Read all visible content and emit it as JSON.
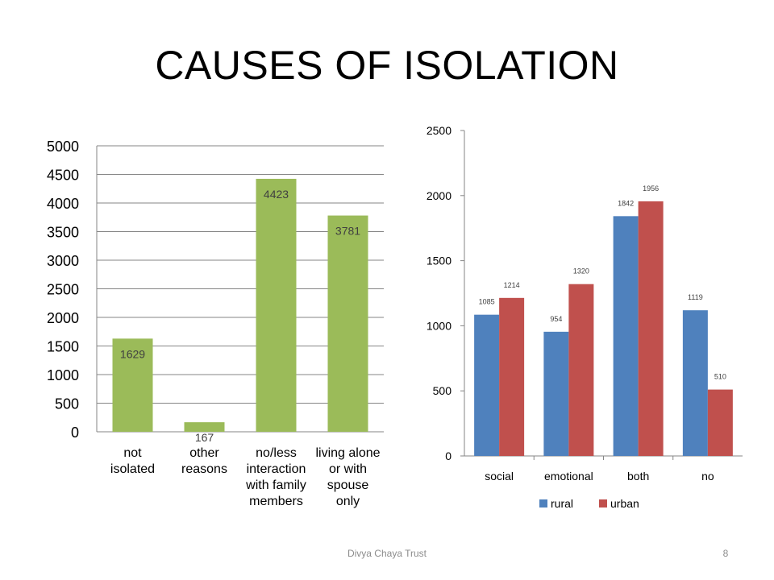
{
  "slide": {
    "title": "CAUSES OF ISOLATION",
    "footer": "Divya Chaya Trust",
    "page_number": "8"
  },
  "chart_data": [
    {
      "type": "bar",
      "categories": [
        [
          "not",
          "isolated"
        ],
        [
          "other",
          "reasons"
        ],
        [
          "no/less",
          "interaction",
          "with family",
          "members"
        ],
        [
          "living alone",
          "or with",
          "spouse",
          "only"
        ]
      ],
      "series": [
        {
          "color": "#9bbb59",
          "values": [
            1629,
            167,
            4423,
            3781
          ]
        }
      ],
      "ylim": [
        0,
        5000
      ],
      "yticks": [
        0,
        500,
        1000,
        1500,
        2000,
        2500,
        3000,
        3500,
        4000,
        4500,
        5000
      ],
      "grid": true,
      "data_labels": true,
      "legend": "none"
    },
    {
      "type": "bar",
      "categories": [
        "social",
        "emotional",
        "both",
        "no"
      ],
      "series": [
        {
          "name": "rural",
          "color": "#4f81bd",
          "values": [
            1085,
            954,
            1842,
            1119
          ]
        },
        {
          "name": "urban",
          "color": "#c0504d",
          "values": [
            1214,
            1320,
            1956,
            510
          ]
        }
      ],
      "ylim": [
        0,
        2500
      ],
      "yticks": [
        0,
        500,
        1000,
        1500,
        2000,
        2500
      ],
      "grid": false,
      "data_labels": true,
      "legend": "bottom"
    }
  ]
}
